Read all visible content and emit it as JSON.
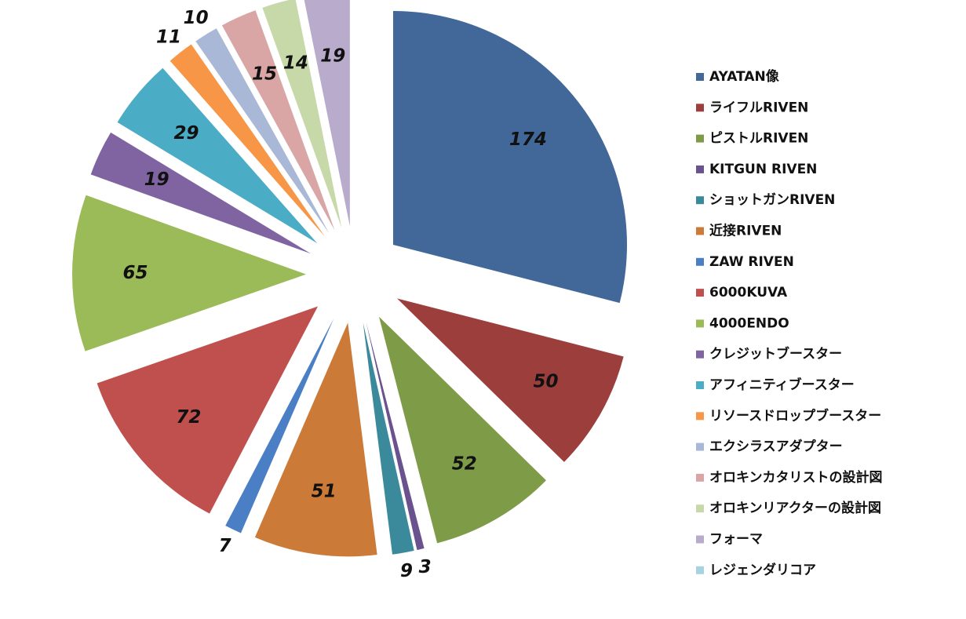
{
  "chart_data": {
    "type": "pie",
    "exploded": true,
    "legend_position": "right",
    "slices": [
      {
        "name": "AYATAN像",
        "value": 174,
        "color": "#416898"
      },
      {
        "name": "ライフルRIVEN",
        "value": 50,
        "color": "#9c3e3c"
      },
      {
        "name": "ピストルRIVEN",
        "value": 52,
        "color": "#7e9b48"
      },
      {
        "name": "KITGUN RIVEN",
        "value": 3,
        "color": "#69528e"
      },
      {
        "name": "ショットガンRIVEN",
        "value": 9,
        "color": "#3a8a9c"
      },
      {
        "name": "近接RIVEN",
        "value": 51,
        "color": "#cc7a37"
      },
      {
        "name": "ZAW RIVEN",
        "value": 7,
        "color": "#4a7fc6"
      },
      {
        "name": "6000KUVA",
        "value": 72,
        "color": "#c0504d"
      },
      {
        "name": "4000ENDO",
        "value": 65,
        "color": "#9bbb59"
      },
      {
        "name": "クレジットブースター",
        "value": 19,
        "color": "#8064a2"
      },
      {
        "name": "アフィニティブースター",
        "value": 29,
        "color": "#4bacc6"
      },
      {
        "name": "リソースドロップブースター",
        "value": 11,
        "color": "#f79646"
      },
      {
        "name": "エクシラスアダプター",
        "value": 10,
        "color": "#aab8d8"
      },
      {
        "name": "オロキンカタリストの設計図",
        "value": 15,
        "color": "#d9a5a5"
      },
      {
        "name": "オロキンリアクターの設計図",
        "value": 14,
        "color": "#c8d9a9"
      },
      {
        "name": "フォーマ",
        "value": 19,
        "color": "#b8abcb"
      },
      {
        "name": "レジェンダリコア",
        "value": 0,
        "color": "#a5d4e0"
      }
    ]
  }
}
